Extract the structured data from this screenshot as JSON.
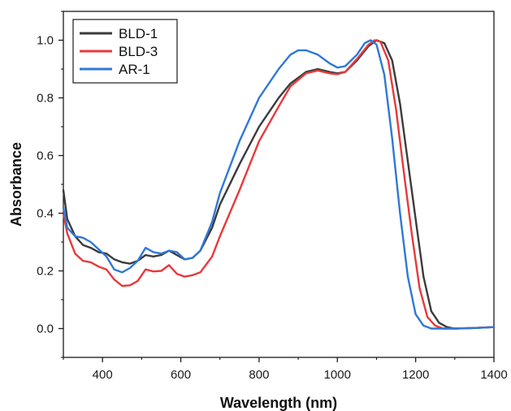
{
  "chart_data": {
    "type": "line",
    "title": "",
    "xlabel": "Wavelength (nm)",
    "ylabel": "Absorbance",
    "xlim": [
      300,
      1400
    ],
    "ylim": [
      -0.1,
      1.1
    ],
    "x_ticks": [
      400,
      600,
      800,
      1000,
      1200,
      1400
    ],
    "y_ticks": [
      0.0,
      0.2,
      0.4,
      0.6,
      0.8,
      1.0
    ],
    "x_tick_labels": [
      "400",
      "600",
      "800",
      "1000",
      "1200",
      "1400"
    ],
    "y_tick_labels": [
      "0.0",
      "0.2",
      "0.4",
      "0.6",
      "0.8",
      "1.0"
    ],
    "grid": false,
    "legend_position": "top-left",
    "series": [
      {
        "name": "BLD-1",
        "color": "#3b3b3b",
        "points": [
          [
            300,
            0.48
          ],
          [
            310,
            0.38
          ],
          [
            330,
            0.32
          ],
          [
            350,
            0.29
          ],
          [
            370,
            0.28
          ],
          [
            390,
            0.265
          ],
          [
            410,
            0.26
          ],
          [
            430,
            0.24
          ],
          [
            450,
            0.23
          ],
          [
            470,
            0.225
          ],
          [
            490,
            0.235
          ],
          [
            510,
            0.255
          ],
          [
            530,
            0.25
          ],
          [
            550,
            0.255
          ],
          [
            570,
            0.27
          ],
          [
            590,
            0.255
          ],
          [
            610,
            0.24
          ],
          [
            630,
            0.245
          ],
          [
            650,
            0.27
          ],
          [
            680,
            0.35
          ],
          [
            700,
            0.43
          ],
          [
            750,
            0.57
          ],
          [
            800,
            0.7
          ],
          [
            850,
            0.8
          ],
          [
            880,
            0.85
          ],
          [
            920,
            0.89
          ],
          [
            950,
            0.9
          ],
          [
            980,
            0.89
          ],
          [
            1000,
            0.885
          ],
          [
            1020,
            0.89
          ],
          [
            1050,
            0.93
          ],
          [
            1080,
            0.98
          ],
          [
            1100,
            1.0
          ],
          [
            1120,
            0.99
          ],
          [
            1140,
            0.93
          ],
          [
            1160,
            0.78
          ],
          [
            1180,
            0.58
          ],
          [
            1200,
            0.38
          ],
          [
            1220,
            0.18
          ],
          [
            1240,
            0.06
          ],
          [
            1260,
            0.02
          ],
          [
            1280,
            0.005
          ],
          [
            1300,
            0.0
          ],
          [
            1350,
            0.002
          ],
          [
            1400,
            0.005
          ]
        ]
      },
      {
        "name": "BLD-3",
        "color": "#e8393c",
        "points": [
          [
            300,
            0.4
          ],
          [
            310,
            0.33
          ],
          [
            330,
            0.26
          ],
          [
            350,
            0.235
          ],
          [
            370,
            0.23
          ],
          [
            390,
            0.215
          ],
          [
            410,
            0.205
          ],
          [
            430,
            0.17
          ],
          [
            450,
            0.148
          ],
          [
            470,
            0.15
          ],
          [
            490,
            0.165
          ],
          [
            510,
            0.205
          ],
          [
            530,
            0.198
          ],
          [
            550,
            0.2
          ],
          [
            570,
            0.22
          ],
          [
            590,
            0.19
          ],
          [
            610,
            0.18
          ],
          [
            630,
            0.185
          ],
          [
            650,
            0.195
          ],
          [
            680,
            0.25
          ],
          [
            700,
            0.32
          ],
          [
            750,
            0.48
          ],
          [
            800,
            0.65
          ],
          [
            850,
            0.77
          ],
          [
            880,
            0.84
          ],
          [
            920,
            0.885
          ],
          [
            950,
            0.895
          ],
          [
            980,
            0.885
          ],
          [
            1000,
            0.882
          ],
          [
            1020,
            0.89
          ],
          [
            1050,
            0.935
          ],
          [
            1080,
            0.985
          ],
          [
            1095,
            1.0
          ],
          [
            1110,
            0.995
          ],
          [
            1130,
            0.93
          ],
          [
            1150,
            0.76
          ],
          [
            1170,
            0.54
          ],
          [
            1190,
            0.33
          ],
          [
            1210,
            0.14
          ],
          [
            1230,
            0.04
          ],
          [
            1250,
            0.01
          ],
          [
            1270,
            0.0
          ],
          [
            1300,
            0.0
          ],
          [
            1350,
            0.002
          ],
          [
            1400,
            0.005
          ]
        ]
      },
      {
        "name": "AR-1",
        "color": "#2f78d6",
        "points": [
          [
            300,
            0.42
          ],
          [
            310,
            0.35
          ],
          [
            330,
            0.32
          ],
          [
            350,
            0.315
          ],
          [
            370,
            0.3
          ],
          [
            390,
            0.275
          ],
          [
            410,
            0.25
          ],
          [
            430,
            0.205
          ],
          [
            450,
            0.195
          ],
          [
            470,
            0.21
          ],
          [
            490,
            0.235
          ],
          [
            510,
            0.28
          ],
          [
            530,
            0.265
          ],
          [
            550,
            0.26
          ],
          [
            570,
            0.27
          ],
          [
            590,
            0.265
          ],
          [
            610,
            0.24
          ],
          [
            630,
            0.245
          ],
          [
            650,
            0.27
          ],
          [
            680,
            0.37
          ],
          [
            700,
            0.47
          ],
          [
            750,
            0.65
          ],
          [
            800,
            0.8
          ],
          [
            850,
            0.9
          ],
          [
            880,
            0.95
          ],
          [
            900,
            0.965
          ],
          [
            920,
            0.965
          ],
          [
            950,
            0.95
          ],
          [
            980,
            0.92
          ],
          [
            1000,
            0.905
          ],
          [
            1020,
            0.91
          ],
          [
            1050,
            0.95
          ],
          [
            1070,
            0.99
          ],
          [
            1085,
            1.0
          ],
          [
            1100,
            0.985
          ],
          [
            1120,
            0.88
          ],
          [
            1140,
            0.66
          ],
          [
            1160,
            0.4
          ],
          [
            1180,
            0.18
          ],
          [
            1200,
            0.05
          ],
          [
            1220,
            0.01
          ],
          [
            1240,
            0.0
          ],
          [
            1300,
            0.0
          ],
          [
            1350,
            0.002
          ],
          [
            1400,
            0.005
          ]
        ]
      }
    ]
  }
}
